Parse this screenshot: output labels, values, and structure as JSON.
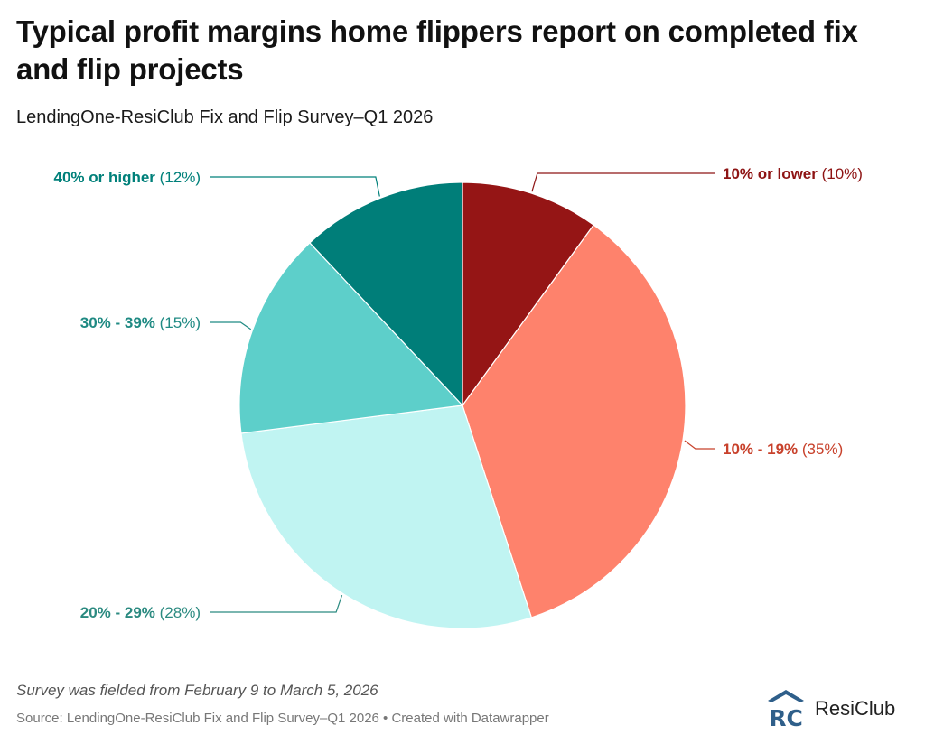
{
  "title": "Typical profit margins home flippers report on completed fix and flip projects",
  "subtitle": "LendingOne-ResiClub Fix and Flip Survey–Q1 2026",
  "note": "Survey was fielded from February 9 to March 5, 2026",
  "source": "Source: LendingOne-ResiClub Fix and Flip Survey–Q1 2026 • Created with Datawrapper",
  "logo": {
    "text": "ResiClub",
    "mark": "RC",
    "icon": "resiclub-logo-icon",
    "color": "#2f5f8a"
  },
  "chart_data": {
    "type": "pie",
    "slices": [
      {
        "label": "10% or lower",
        "value": 10,
        "value_label": "(10%)",
        "color": "#951515",
        "label_color": "#8e1414"
      },
      {
        "label": "10% - 19%",
        "value": 35,
        "value_label": "(35%)",
        "color": "#fe826c",
        "label_color": "#c8412b"
      },
      {
        "label": "20% - 29%",
        "value": 28,
        "value_label": "(28%)",
        "color": "#c0f4f2",
        "label_color": "#2b8a80"
      },
      {
        "label": "30% - 39%",
        "value": 15,
        "value_label": "(15%)",
        "color": "#5dcfca",
        "label_color": "#1f8a83"
      },
      {
        "label": "40% or higher",
        "value": 12,
        "value_label": "(12%)",
        "color": "#007e79",
        "label_color": "#00807a"
      }
    ]
  }
}
